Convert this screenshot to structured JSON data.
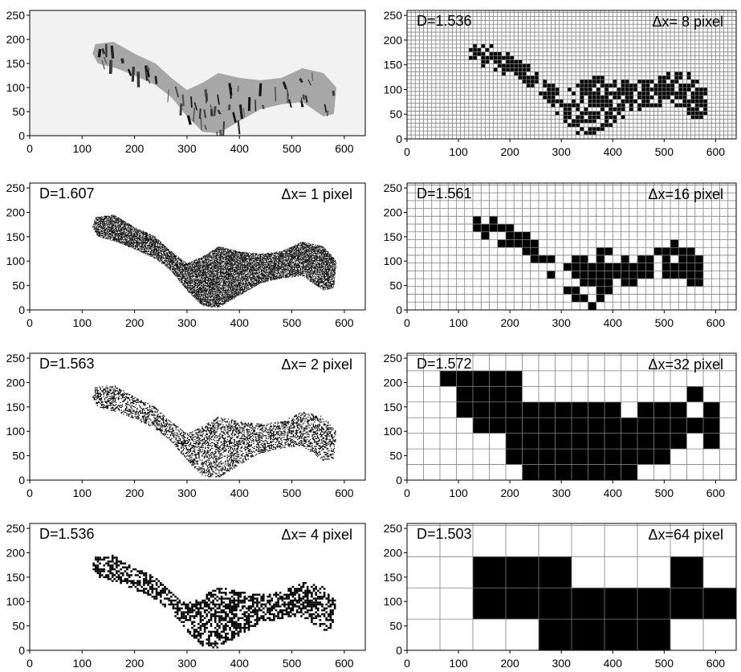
{
  "chart_data": [
    {
      "type": "image",
      "panel": "original-image",
      "xlim": [
        0,
        640
      ],
      "ylim": [
        0,
        260
      ],
      "xticks": [
        "0",
        "100",
        "200",
        "300",
        "400",
        "500",
        "600"
      ],
      "yticks": [
        "0",
        "50",
        "100",
        "150",
        "200",
        "250"
      ],
      "D": "",
      "dx": "",
      "cell": 0
    },
    {
      "type": "heatmap",
      "panel": "dx-1",
      "xlim": [
        0,
        640
      ],
      "ylim": [
        0,
        260
      ],
      "xticks": [
        "0",
        "100",
        "200",
        "300",
        "400",
        "500",
        "600"
      ],
      "yticks": [
        "0",
        "50",
        "100",
        "150",
        "200",
        "250"
      ],
      "D": "D=1.607",
      "dx": "Δx= 1 pixel",
      "cell": 1
    },
    {
      "type": "heatmap",
      "panel": "dx-2",
      "xlim": [
        0,
        640
      ],
      "ylim": [
        0,
        260
      ],
      "xticks": [
        "0",
        "100",
        "200",
        "300",
        "400",
        "500",
        "600"
      ],
      "yticks": [
        "0",
        "50",
        "100",
        "150",
        "200",
        "250"
      ],
      "D": "D=1.563",
      "dx": "Δx= 2 pixel",
      "cell": 2
    },
    {
      "type": "heatmap",
      "panel": "dx-4",
      "xlim": [
        0,
        640
      ],
      "ylim": [
        0,
        260
      ],
      "xticks": [
        "0",
        "100",
        "200",
        "300",
        "400",
        "500",
        "600"
      ],
      "yticks": [
        "0",
        "50",
        "100",
        "150",
        "200",
        "250"
      ],
      "D": "D=1.536",
      "dx": "Δx= 4 pixel",
      "cell": 4
    },
    {
      "type": "heatmap",
      "panel": "dx-8",
      "xlim": [
        0,
        640
      ],
      "ylim": [
        0,
        260
      ],
      "xticks": [
        "0",
        "100",
        "200",
        "300",
        "400",
        "500",
        "600"
      ],
      "yticks": [
        "0",
        "50",
        "100",
        "150",
        "200",
        "250"
      ],
      "D": "D=1.536",
      "dx": "Δx= 8 pixel",
      "cell": 8,
      "grid": true
    },
    {
      "type": "heatmap",
      "panel": "dx-16",
      "xlim": [
        0,
        640
      ],
      "ylim": [
        0,
        260
      ],
      "xticks": [
        "0",
        "100",
        "200",
        "300",
        "400",
        "500",
        "600"
      ],
      "yticks": [
        "0",
        "50",
        "100",
        "150",
        "200",
        "250"
      ],
      "D": "D=1.561",
      "dx": "Δx=16 pixel",
      "cell": 16,
      "grid": true
    },
    {
      "type": "heatmap",
      "panel": "dx-32",
      "xlim": [
        0,
        640
      ],
      "ylim": [
        0,
        260
      ],
      "xticks": [
        "0",
        "100",
        "200",
        "300",
        "400",
        "500",
        "600"
      ],
      "yticks": [
        "0",
        "50",
        "100",
        "150",
        "200",
        "250"
      ],
      "D": "D=1.572",
      "dx": "Δx=32 pixel",
      "cell": 32,
      "grid": true,
      "filled_cells": [
        [
          2,
          6
        ],
        [
          3,
          6
        ],
        [
          4,
          6
        ],
        [
          5,
          6
        ],
        [
          6,
          6
        ],
        [
          3,
          5
        ],
        [
          4,
          5
        ],
        [
          5,
          5
        ],
        [
          6,
          5
        ],
        [
          17,
          5
        ],
        [
          3,
          4
        ],
        [
          4,
          4
        ],
        [
          5,
          4
        ],
        [
          6,
          4
        ],
        [
          7,
          4
        ],
        [
          8,
          4
        ],
        [
          9,
          4
        ],
        [
          10,
          4
        ],
        [
          11,
          4
        ],
        [
          12,
          4
        ],
        [
          14,
          4
        ],
        [
          15,
          4
        ],
        [
          16,
          4
        ],
        [
          18,
          4
        ],
        [
          4,
          3
        ],
        [
          5,
          3
        ],
        [
          6,
          3
        ],
        [
          7,
          3
        ],
        [
          8,
          3
        ],
        [
          9,
          3
        ],
        [
          10,
          3
        ],
        [
          11,
          3
        ],
        [
          12,
          3
        ],
        [
          13,
          3
        ],
        [
          14,
          3
        ],
        [
          15,
          3
        ],
        [
          16,
          3
        ],
        [
          17,
          3
        ],
        [
          18,
          3
        ],
        [
          6,
          2
        ],
        [
          7,
          2
        ],
        [
          8,
          2
        ],
        [
          9,
          2
        ],
        [
          10,
          2
        ],
        [
          11,
          2
        ],
        [
          12,
          2
        ],
        [
          13,
          2
        ],
        [
          14,
          2
        ],
        [
          15,
          2
        ],
        [
          16,
          2
        ],
        [
          18,
          2
        ],
        [
          6,
          1
        ],
        [
          7,
          1
        ],
        [
          8,
          1
        ],
        [
          9,
          1
        ],
        [
          10,
          1
        ],
        [
          11,
          1
        ],
        [
          12,
          1
        ],
        [
          13,
          1
        ],
        [
          14,
          1
        ],
        [
          15,
          1
        ],
        [
          7,
          0
        ],
        [
          8,
          0
        ],
        [
          9,
          0
        ],
        [
          10,
          0
        ],
        [
          11,
          0
        ],
        [
          12,
          0
        ],
        [
          13,
          0
        ]
      ]
    },
    {
      "type": "heatmap",
      "panel": "dx-64",
      "xlim": [
        0,
        640
      ],
      "ylim": [
        0,
        260
      ],
      "xticks": [
        "0",
        "100",
        "200",
        "300",
        "400",
        "500",
        "600"
      ],
      "yticks": [
        "0",
        "50",
        "100",
        "150",
        "200",
        "250"
      ],
      "D": "D=1.503",
      "dx": "Δx=64 pixel",
      "cell": 64,
      "grid": true,
      "filled_cells": [
        [
          2,
          2
        ],
        [
          3,
          2
        ],
        [
          4,
          2
        ],
        [
          8,
          2
        ],
        [
          2,
          1
        ],
        [
          3,
          1
        ],
        [
          4,
          1
        ],
        [
          5,
          1
        ],
        [
          6,
          1
        ],
        [
          7,
          1
        ],
        [
          8,
          1
        ],
        [
          9,
          1
        ],
        [
          4,
          0
        ],
        [
          5,
          0
        ],
        [
          6,
          0
        ],
        [
          7,
          0
        ]
      ]
    }
  ],
  "colors": {
    "ink": "#000000",
    "grid": "#808080",
    "background": "#ffffff"
  }
}
